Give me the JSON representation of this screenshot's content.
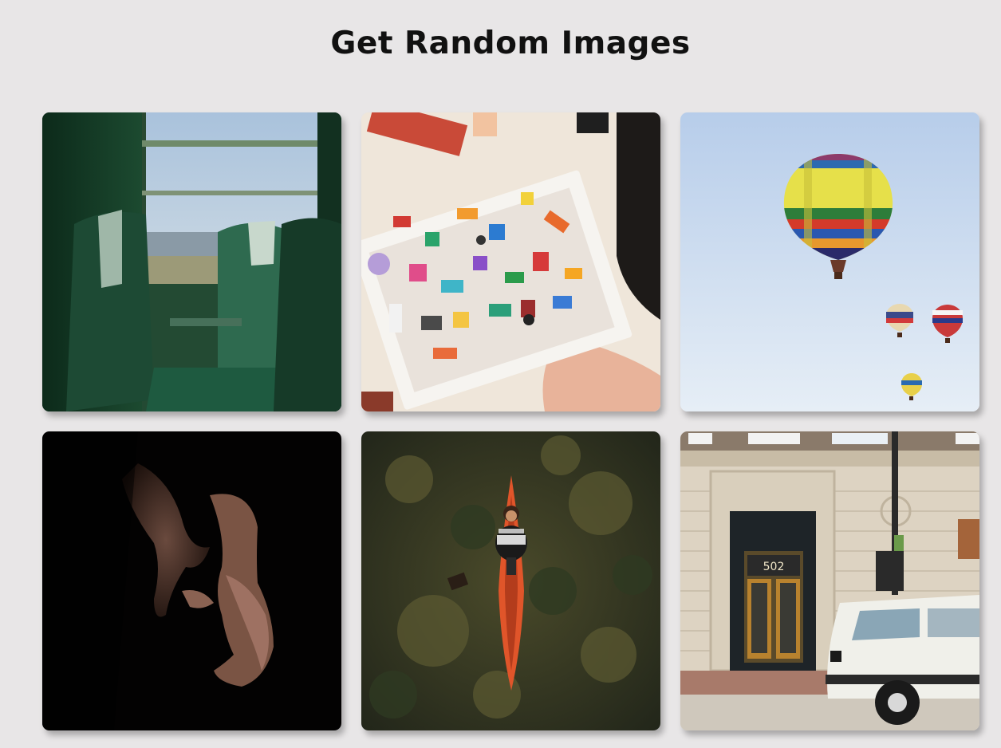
{
  "page": {
    "title": "Get Random Images"
  },
  "images": [
    {
      "name": "train-seats-image"
    },
    {
      "name": "lego-box-image"
    },
    {
      "name": "hot-air-balloons-image"
    },
    {
      "name": "hands-in-dark-image"
    },
    {
      "name": "kayak-on-grass-image"
    },
    {
      "name": "building-with-van-image",
      "sign_text": "502"
    }
  ],
  "colors": {
    "background": "#e8e6e7",
    "title": "#111111"
  }
}
